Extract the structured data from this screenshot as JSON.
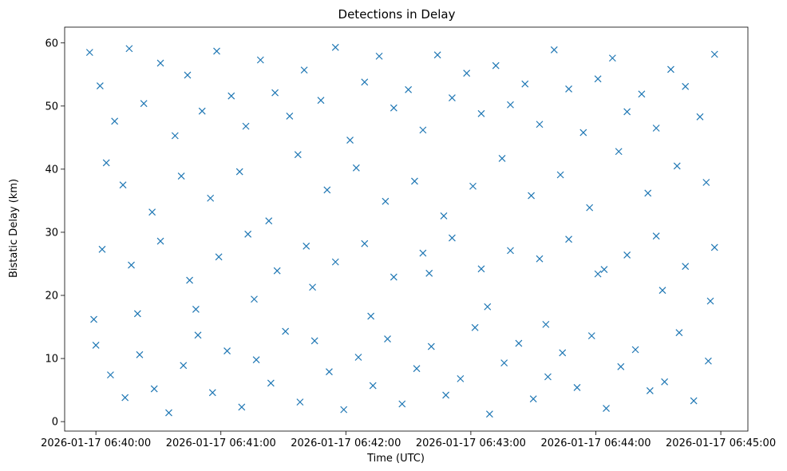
{
  "chart_data": {
    "type": "scatter",
    "title": "Detections in Delay",
    "xlabel": "Time (UTC)",
    "ylabel": "Bistatic Delay (km)",
    "x_ticks": [
      "2026-01-17 06:40:00",
      "2026-01-17 06:41:00",
      "2026-01-17 06:42:00",
      "2026-01-17 06:43:00",
      "2026-01-17 06:44:00",
      "2026-01-17 06:45:00"
    ],
    "y_ticks": [
      "0",
      "10",
      "20",
      "30",
      "40",
      "50",
      "60"
    ],
    "xlim": [
      "2026-01-17 06:39:45",
      "2026-01-17 06:45:13"
    ],
    "ylim": [
      -1.5,
      62.5
    ],
    "marker": "x",
    "grid": false,
    "color": "#1f77b4",
    "series": [
      {
        "x": [
          "06:39:57",
          "06:40:02",
          "06:40:09",
          "06:40:16",
          "06:40:23",
          "06:40:31",
          "06:40:38",
          "06:40:44",
          "06:40:51",
          "06:40:58",
          "06:41:05",
          "06:41:12",
          "06:41:19",
          "06:41:26",
          "06:41:33",
          "06:41:40",
          "06:41:48",
          "06:41:55",
          "06:42:02",
          "06:42:09",
          "06:42:16",
          "06:42:23",
          "06:42:30",
          "06:42:37",
          "06:42:44",
          "06:42:51",
          "06:42:58",
          "06:43:05",
          "06:43:12",
          "06:43:19",
          "06:43:26",
          "06:43:33",
          "06:43:40",
          "06:43:47",
          "06:43:54",
          "06:44:01",
          "06:44:08",
          "06:44:15",
          "06:44:22",
          "06:44:29",
          "06:44:36",
          "06:44:43",
          "06:44:50",
          "06:44:57",
          "06:40:05",
          "06:40:13",
          "06:40:27",
          "06:40:41",
          "06:40:55",
          "06:41:09",
          "06:41:23",
          "06:41:37",
          "06:41:51",
          "06:42:05",
          "06:42:19",
          "06:42:33",
          "06:42:47",
          "06:43:01",
          "06:43:15",
          "06:43:29",
          "06:43:43",
          "06:43:57",
          "06:44:11",
          "06:44:25",
          "06:44:39",
          "06:44:53",
          "06:39:59",
          "06:40:20",
          "06:40:48",
          "06:41:16",
          "06:41:44",
          "06:42:12",
          "06:42:40",
          "06:43:08",
          "06:43:36",
          "06:44:04",
          "06:44:32",
          "06:44:55"
        ],
        "y": [
          58.5,
          53.2,
          47.6,
          59.1,
          50.4,
          56.8,
          45.3,
          54.9,
          49.2,
          58.7,
          51.6,
          46.8,
          57.3,
          52.1,
          48.4,
          55.7,
          50.9,
          59.3,
          44.6,
          53.8,
          57.9,
          49.7,
          52.6,
          46.2,
          58.1,
          51.3,
          55.2,
          48.8,
          56.4,
          50.2,
          53.5,
          47.1,
          58.9,
          52.7,
          45.8,
          54.3,
          57.6,
          49.1,
          51.9,
          46.5,
          55.8,
          53.1,
          48.3,
          58.2,
          41.0,
          37.5,
          33.2,
          38.9,
          35.4,
          39.6,
          31.8,
          42.3,
          36.7,
          40.2,
          34.9,
          38.1,
          32.6,
          37.3,
          41.7,
          35.8,
          39.1,
          33.9,
          42.8,
          36.2,
          40.5,
          37.9,
          16.2,
          17.1,
          17.8,
          19.4,
          21.3,
          16.7,
          23.5,
          18.2,
          15.4,
          24.1,
          20.8,
          19.1
        ]
      },
      {
        "x": [
          "06:40:00",
          "06:40:07",
          "06:40:14",
          "06:40:21",
          "06:40:28",
          "06:40:35",
          "06:40:42",
          "06:40:49",
          "06:40:56",
          "06:41:03",
          "06:41:10",
          "06:41:17",
          "06:41:24",
          "06:41:31",
          "06:41:38",
          "06:41:45",
          "06:41:52",
          "06:41:59",
          "06:42:06",
          "06:42:13",
          "06:42:20",
          "06:42:27",
          "06:42:34",
          "06:42:41",
          "06:42:48",
          "06:42:55",
          "06:43:02",
          "06:43:09",
          "06:43:16",
          "06:43:23",
          "06:43:30",
          "06:43:37",
          "06:43:44",
          "06:43:51",
          "06:43:58",
          "06:44:05",
          "06:44:12",
          "06:44:19",
          "06:44:26",
          "06:44:33",
          "06:44:40",
          "06:44:47",
          "06:44:54",
          "06:40:03",
          "06:40:17",
          "06:40:31",
          "06:40:45",
          "06:40:59",
          "06:41:13",
          "06:41:27",
          "06:41:41",
          "06:41:55",
          "06:42:09",
          "06:42:23",
          "06:42:37",
          "06:42:51",
          "06:43:05",
          "06:43:19",
          "06:43:33",
          "06:43:47",
          "06:44:01",
          "06:44:15",
          "06:44:29",
          "06:44:43",
          "06:44:57"
        ],
        "y": [
          12.1,
          7.4,
          3.8,
          10.6,
          5.2,
          1.4,
          8.9,
          13.7,
          4.6,
          11.2,
          2.3,
          9.8,
          6.1,
          14.3,
          3.1,
          12.8,
          7.9,
          1.9,
          10.2,
          5.7,
          13.1,
          2.8,
          8.4,
          11.9,
          4.2,
          6.8,
          14.9,
          1.2,
          9.3,
          12.4,
          3.6,
          7.1,
          10.9,
          5.4,
          13.6,
          2.1,
          8.7,
          11.4,
          4.9,
          6.3,
          14.1,
          3.3,
          9.6,
          27.3,
          24.8,
          28.6,
          22.4,
          26.1,
          29.7,
          23.9,
          27.8,
          25.3,
          28.2,
          22.9,
          26.7,
          29.1,
          24.2,
          27.1,
          25.8,
          28.9,
          23.4,
          26.4,
          29.4,
          24.6,
          27.6
        ]
      }
    ]
  }
}
